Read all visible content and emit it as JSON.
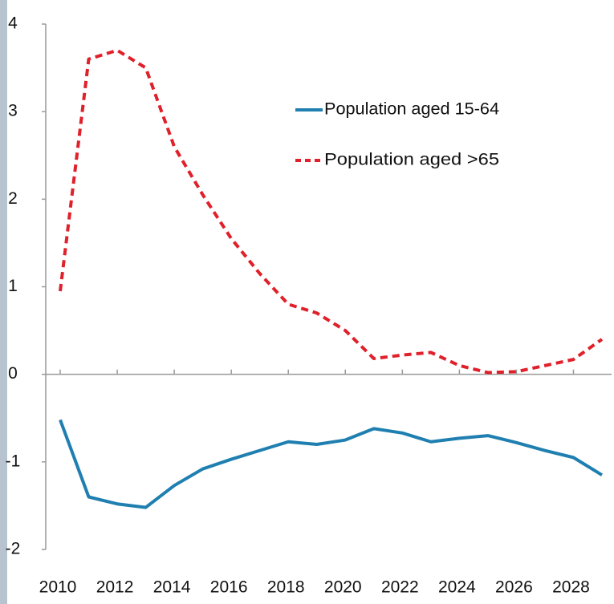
{
  "chart_data": {
    "type": "line",
    "x": [
      2010,
      2011,
      2012,
      2013,
      2014,
      2015,
      2016,
      2017,
      2018,
      2019,
      2020,
      2021,
      2022,
      2023,
      2024,
      2025,
      2026,
      2027,
      2028,
      2029
    ],
    "series": [
      {
        "name": "Population aged 15-64",
        "color": "#1f7fb0",
        "dash": false,
        "values": [
          -0.52,
          -1.4,
          -1.48,
          -1.52,
          -1.27,
          -1.08,
          -0.97,
          -0.87,
          -0.77,
          -0.8,
          -0.75,
          -0.62,
          -0.67,
          -0.77,
          -0.73,
          -0.7,
          -0.78,
          -0.87,
          -0.95,
          -1.15
        ]
      },
      {
        "name": "Population aged >65",
        "color": "#e0202a",
        "dash": true,
        "values": [
          0.95,
          3.6,
          3.7,
          3.5,
          2.6,
          2.05,
          1.55,
          1.15,
          0.8,
          0.7,
          0.5,
          0.18,
          0.22,
          0.25,
          0.1,
          0.02,
          0.03,
          0.1,
          0.17,
          0.4
        ]
      }
    ],
    "xlim": [
      2010,
      2029
    ],
    "xticks": [
      2010,
      2012,
      2014,
      2016,
      2018,
      2020,
      2022,
      2024,
      2026,
      2028
    ],
    "ylim": [
      -2,
      4
    ],
    "yticks": [
      -2,
      -1,
      0,
      1,
      2,
      3,
      4
    ]
  }
}
